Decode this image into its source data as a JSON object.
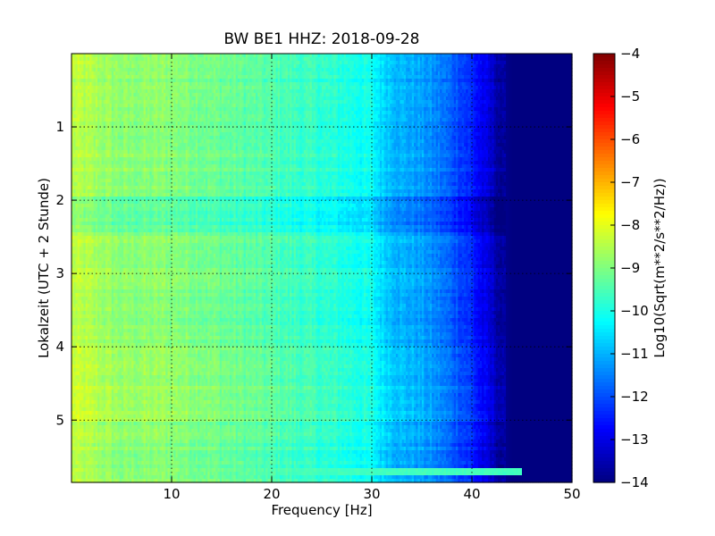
{
  "chart_data": {
    "type": "heatmap",
    "title": "BW BE1 HHZ: 2018-09-28",
    "xlabel": "Frequency [Hz]",
    "ylabel": "Lokalzeit (UTC + 2 Stunde)",
    "xlim": [
      0,
      50
    ],
    "ylim": [
      5.85,
      0
    ],
    "x_ticks": [
      10,
      20,
      30,
      40,
      50
    ],
    "x_tick_labels": [
      "10",
      "20",
      "30",
      "40",
      "50"
    ],
    "y_ticks": [
      1,
      2,
      3,
      4,
      5
    ],
    "y_tick_labels": [
      "1",
      "2",
      "3",
      "4",
      "5"
    ],
    "grid": true,
    "colormap": "jet",
    "colorbar": {
      "label": "Log10(Sqrt(m**2/s**2/Hz))",
      "range": [
        -14,
        -4
      ],
      "ticks": [
        -4,
        -5,
        -6,
        -7,
        -8,
        -9,
        -10,
        -11,
        -12,
        -13,
        -14
      ],
      "tick_labels": [
        "−4",
        "−5",
        "−6",
        "−7",
        "−8",
        "−9",
        "−10",
        "−11",
        "−12",
        "−13",
        "−14"
      ]
    },
    "frequency_profile": {
      "frequency_hz": [
        0,
        2,
        5,
        10,
        15,
        20,
        25,
        28,
        30,
        31,
        33,
        35,
        37,
        39,
        40,
        41,
        42,
        43,
        44,
        45,
        50
      ],
      "level": [
        -8.4,
        -8.6,
        -8.9,
        -8.9,
        -9.2,
        -9.5,
        -9.8,
        -10.0,
        -10.2,
        -10.6,
        -11.0,
        -11.2,
        -11.6,
        -12.1,
        -12.4,
        -12.9,
        -13.3,
        -13.8,
        -14.0,
        -14.0,
        -14.0
      ]
    },
    "time_variation": {
      "quieter_band_hours": [
        1.95,
        2.45
      ],
      "quieter_band_offset": -0.45,
      "hours_4_to_5_offset": 0.2,
      "late_bright_line_hours": 5.7,
      "late_bright_line_level": -9.6,
      "late_bright_line_end_hz": 45
    }
  }
}
